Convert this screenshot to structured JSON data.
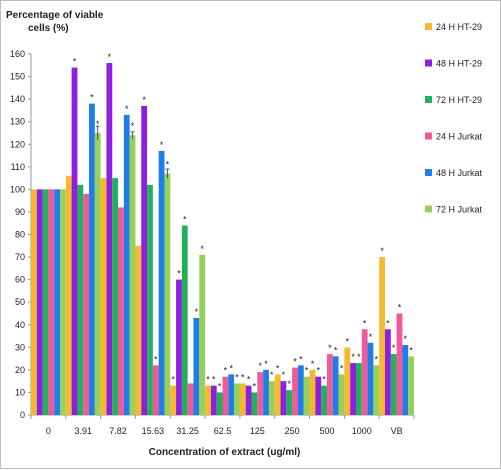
{
  "chart_data": {
    "type": "bar",
    "ylabel": "Percentage of viable cells (%)",
    "ylabel_lines": [
      "Percentage of viable",
      "cells (%)"
    ],
    "xlabel": "Concentration of extract (ug/ml)",
    "ylim": [
      0,
      160
    ],
    "yticks": [
      0,
      10,
      20,
      30,
      40,
      50,
      60,
      70,
      80,
      90,
      100,
      110,
      120,
      130,
      140,
      150,
      160
    ],
    "grid": false,
    "legend_position": "right",
    "categories": [
      "0",
      "3.91",
      "7.82",
      "15.63",
      "31.25",
      "62.5",
      "125",
      "250",
      "500",
      "1000",
      "VB"
    ],
    "series": [
      {
        "name": "24 H HT-29",
        "color": "#f5b82e",
        "values": [
          100,
          106,
          105,
          75,
          13,
          13,
          14,
          18,
          20,
          30,
          70
        ],
        "stars": [
          false,
          false,
          false,
          false,
          true,
          true,
          true,
          true,
          true,
          true,
          true
        ]
      },
      {
        "name": "48 H HT-29",
        "color": "#8e1ee0",
        "values": [
          100,
          154,
          156,
          137,
          60,
          13,
          13,
          15,
          17,
          23,
          38
        ],
        "stars": [
          false,
          true,
          true,
          true,
          true,
          true,
          true,
          true,
          true,
          true,
          true
        ]
      },
      {
        "name": "72 H HT-29",
        "color": "#22b05a",
        "values": [
          100,
          102,
          105,
          102,
          84,
          10,
          10,
          11,
          13,
          23,
          27
        ],
        "stars": [
          false,
          false,
          false,
          false,
          true,
          true,
          true,
          true,
          true,
          true,
          true
        ]
      },
      {
        "name": "24 H Jurkat",
        "color": "#f05a9a",
        "values": [
          100,
          98,
          92,
          22,
          14,
          17,
          19,
          21,
          27,
          38,
          45
        ],
        "stars": [
          false,
          false,
          false,
          true,
          false,
          true,
          true,
          true,
          true,
          true,
          true
        ]
      },
      {
        "name": "48 H Jurkat",
        "color": "#1e7ee8",
        "values": [
          100,
          138,
          133,
          117,
          43,
          18,
          20,
          22,
          26,
          32,
          31
        ],
        "stars": [
          false,
          true,
          true,
          true,
          true,
          true,
          true,
          true,
          true,
          true,
          true
        ]
      },
      {
        "name": "72 H Jurkat",
        "color": "#98d05a",
        "values": [
          100,
          125,
          124,
          107,
          71,
          14,
          15,
          17,
          18,
          22,
          26
        ],
        "stars": [
          false,
          true,
          true,
          true,
          true,
          true,
          true,
          true,
          true,
          true,
          true
        ]
      }
    ],
    "error_bars": {
      "7.82": {
        "72 H Jurkat": 1.5
      },
      "3.91": {
        "72 H Jurkat": 3
      },
      "15.63": {
        "72 H Jurkat": 2
      }
    },
    "annotation_symbol": "*"
  }
}
